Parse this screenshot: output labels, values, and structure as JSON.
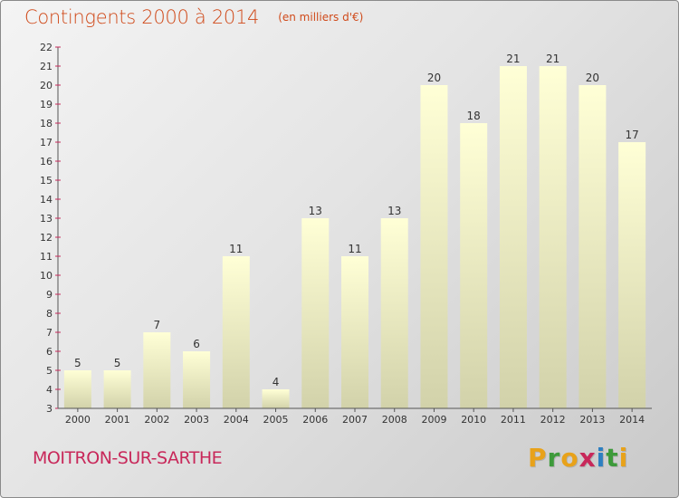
{
  "title": "Contingents 2000 à 2014",
  "subtitle": "(en milliers d'€)",
  "commune": "MOITRON-SUR-SARTHE",
  "logo": {
    "letters": [
      "P",
      "r",
      "o",
      "x",
      "i",
      "t",
      "i"
    ],
    "colors": [
      "#e8a21a",
      "#3d9a3a",
      "#e8a21a",
      "#c8285a",
      "#2d7fc1",
      "#3d9a3a",
      "#e8a21a"
    ]
  },
  "colors": {
    "title": "#d04a1a",
    "commune": "#c8285a",
    "axis_ticks": "#c8285a",
    "bar_top": "#ffffd6",
    "bar_bottom": "#d2d2aa"
  },
  "chart_data": {
    "type": "bar",
    "categories": [
      "2000",
      "2001",
      "2002",
      "2003",
      "2004",
      "2005",
      "2006",
      "2007",
      "2008",
      "2009",
      "2010",
      "2011",
      "2012",
      "2013",
      "2014"
    ],
    "values": [
      5,
      5,
      7,
      6,
      11,
      4,
      13,
      11,
      13,
      20,
      18,
      21,
      21,
      20,
      17
    ],
    "ylim": [
      3,
      22
    ],
    "yticks": [
      3,
      4,
      5,
      6,
      7,
      8,
      9,
      10,
      11,
      12,
      13,
      14,
      15,
      16,
      17,
      18,
      19,
      20,
      21,
      22
    ],
    "xlabel": "",
    "ylabel": "",
    "grid": false,
    "legend": "none"
  }
}
